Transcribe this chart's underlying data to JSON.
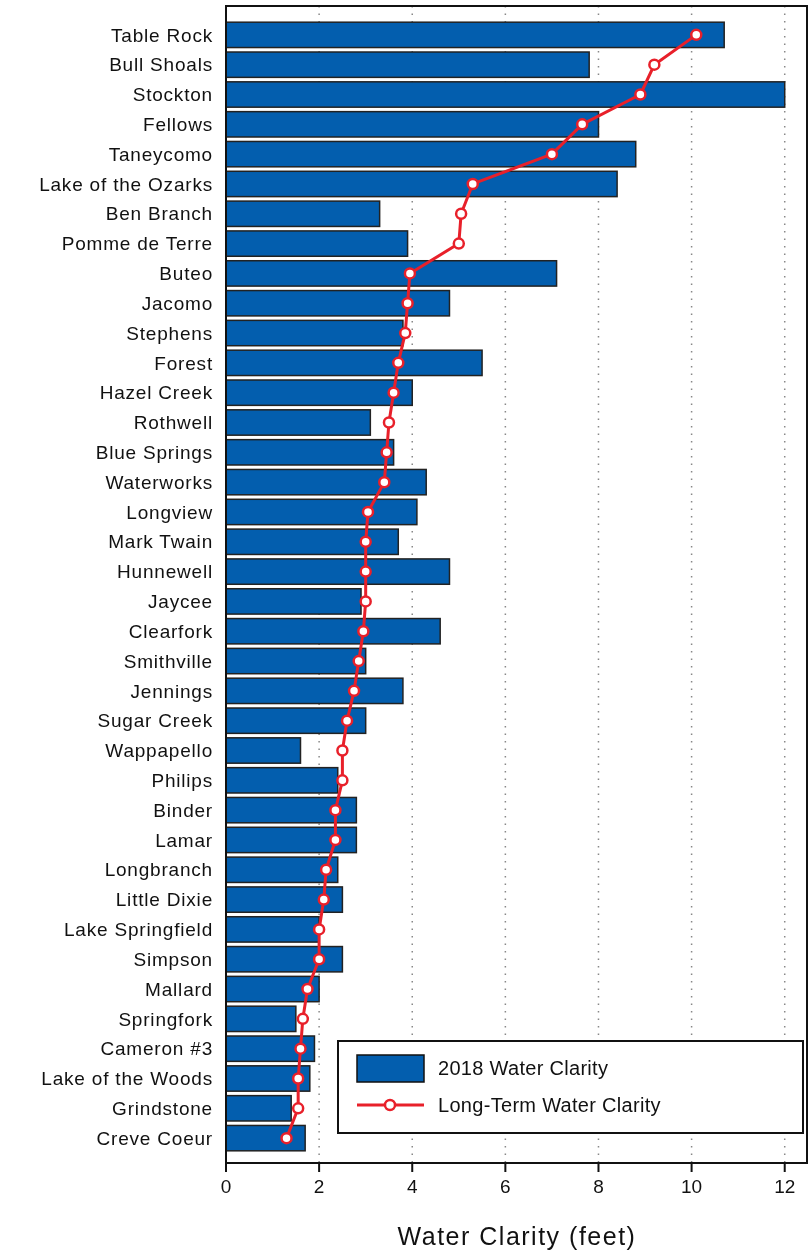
{
  "chart_data": {
    "type": "bar",
    "orientation": "horizontal",
    "xlabel": "Water Clarity (feet)",
    "categories": [
      "Table Rock",
      "Bull Shoals",
      "Stockton",
      "Fellows",
      "Taneycomo",
      "Lake of the Ozarks",
      "Ben Branch",
      "Pomme de Terre",
      "Buteo",
      "Jacomo",
      "Stephens",
      "Forest",
      "Hazel Creek",
      "Rothwell",
      "Blue Springs",
      "Waterworks",
      "Longview",
      "Mark Twain",
      "Hunnewell",
      "Jaycee",
      "Clearfork",
      "Smithville",
      "Jennings",
      "Sugar Creek",
      "Wappapello",
      "Philips",
      "Binder",
      "Lamar",
      "Longbranch",
      "Little Dixie",
      "Lake Springfield",
      "Simpson",
      "Mallard",
      "Springfork",
      "Cameron #3",
      "Lake of the Woods",
      "Grindstone",
      "Creve Coeur"
    ],
    "series": [
      {
        "name": "2018 Water Clarity",
        "color": "#035eae",
        "values": [
          10.7,
          7.8,
          12.0,
          8.0,
          8.8,
          8.4,
          3.3,
          3.9,
          7.1,
          4.8,
          3.8,
          5.5,
          4.0,
          3.1,
          3.6,
          4.3,
          4.1,
          3.7,
          4.8,
          2.9,
          4.6,
          3.0,
          3.8,
          3.0,
          1.6,
          2.4,
          2.8,
          2.8,
          2.4,
          2.5,
          2.0,
          2.5,
          2.0,
          1.5,
          1.9,
          1.8,
          1.4,
          1.7
        ]
      },
      {
        "name": "Long-Term Water Clarity",
        "type": "line",
        "color": "#e8202a",
        "marker": "circle",
        "values": [
          10.1,
          9.2,
          8.9,
          7.65,
          7.0,
          5.3,
          5.05,
          5.0,
          3.95,
          3.9,
          3.85,
          3.7,
          3.6,
          3.5,
          3.45,
          3.4,
          3.05,
          3.0,
          3.0,
          3.0,
          2.95,
          2.85,
          2.75,
          2.6,
          2.5,
          2.5,
          2.35,
          2.35,
          2.15,
          2.1,
          2.0,
          2.0,
          1.75,
          1.65,
          1.6,
          1.55,
          1.55,
          1.3
        ]
      }
    ],
    "xlim": [
      0,
      12.5
    ],
    "xticks": [
      0,
      2,
      4,
      6,
      8,
      10,
      12
    ],
    "grid": "x",
    "legend": "bottom right"
  }
}
